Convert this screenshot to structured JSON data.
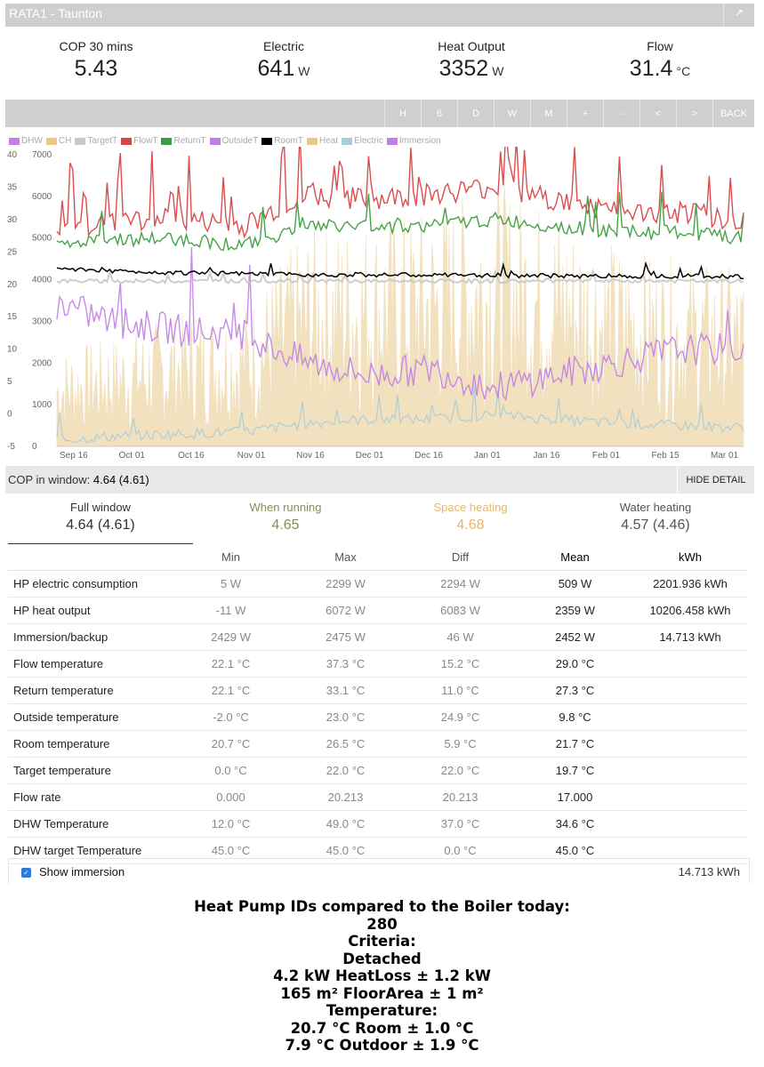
{
  "window": {
    "title": "RATA1 - Taunton",
    "external_icon": "external-link-icon"
  },
  "stats": [
    {
      "label": "COP 30 mins",
      "value": "5.43",
      "unit": ""
    },
    {
      "label": "Electric",
      "value": "641",
      "unit": "W"
    },
    {
      "label": "Heat Output",
      "value": "3352",
      "unit": "W"
    },
    {
      "label": "Flow",
      "value": "31.4",
      "unit": "°C"
    }
  ],
  "toolbar": {
    "buttons": [
      "H",
      "6",
      "D",
      "W",
      "M",
      "+",
      "-",
      "<",
      ">",
      "BACK"
    ]
  },
  "legend": [
    {
      "name": "DHW",
      "color": "#c27ee6"
    },
    {
      "name": "CH",
      "color": "#e8c98a"
    },
    {
      "name": "TargetT",
      "color": "#c8c8c8"
    },
    {
      "name": "FlowT",
      "color": "#d94545"
    },
    {
      "name": "ReturnT",
      "color": "#3c9e3c"
    },
    {
      "name": "OutsideT",
      "color": "#c27ee6"
    },
    {
      "name": "RoomT",
      "color": "#000000"
    },
    {
      "name": "Heat",
      "color": "#e8c98a"
    },
    {
      "name": "Electric",
      "color": "#a9ccd8"
    },
    {
      "name": "Immersion",
      "color": "#c27ee6"
    }
  ],
  "chart_data": {
    "type": "line",
    "x_ticks": [
      "Sep 16",
      "Oct 01",
      "Oct 16",
      "Nov 01",
      "Nov 16",
      "Dec 01",
      "Dec 16",
      "Jan 01",
      "Jan 16",
      "Feb 01",
      "Feb 15",
      "Mar 01"
    ],
    "y_left_ticks": [
      "40",
      "35",
      "30",
      "25",
      "20",
      "15",
      "10",
      "5",
      "0",
      "-5"
    ],
    "y_left_range": [
      -5,
      40
    ],
    "y_right_ticks": [
      "7000",
      "6000",
      "5000",
      "4000",
      "3000",
      "2000",
      "1000",
      "0"
    ],
    "y_right_range": [
      0,
      7000
    ],
    "series": [
      {
        "name": "FlowT",
        "axis": "left",
        "approx_level": [
          28,
          30,
          30,
          29,
          34,
          33,
          34,
          35,
          33,
          31,
          31,
          30
        ]
      },
      {
        "name": "ReturnT",
        "axis": "left",
        "approx_level": [
          26,
          27,
          27,
          26,
          29,
          29,
          29,
          30,
          29,
          28,
          28,
          27
        ]
      },
      {
        "name": "RoomT",
        "axis": "left",
        "approx_level": [
          22.5,
          22,
          21.8,
          21.6,
          21.5,
          21.5,
          21.4,
          21.4,
          21.3,
          21.3,
          21.3,
          21.2
        ]
      },
      {
        "name": "TargetT",
        "axis": "left",
        "approx_level": [
          20.5,
          20.5,
          20.5,
          20.5,
          20.5,
          20.5,
          20.5,
          20.5,
          20.5,
          20.5,
          20.5,
          20.5
        ]
      },
      {
        "name": "OutsideT",
        "axis": "left",
        "approx_level": [
          17,
          14,
          13,
          12,
          8,
          6,
          7,
          4,
          6,
          8,
          10,
          10
        ]
      },
      {
        "name": "Heat",
        "axis": "right",
        "approx_level": [
          1300,
          1500,
          1800,
          1900,
          2900,
          3100,
          3200,
          3600,
          3200,
          2700,
          2500,
          2400
        ]
      },
      {
        "name": "Electric",
        "axis": "right",
        "approx_level": [
          150,
          250,
          300,
          350,
          550,
          650,
          650,
          750,
          650,
          550,
          500,
          450
        ]
      }
    ]
  },
  "cop_bar": {
    "label": "COP in window:",
    "value": "4.64 (4.61)",
    "hide_label": "HIDE DETAIL"
  },
  "tabs": [
    {
      "label": "Full window",
      "value": "4.64 (4.61)",
      "color": "#333333"
    },
    {
      "label": "When running",
      "value": "4.65",
      "color": "#8a8a5a"
    },
    {
      "label": "Space heating",
      "value": "4.68",
      "color": "#e5b86a"
    },
    {
      "label": "Water heating",
      "value": "4.57 (4.46)",
      "color": "#555555"
    }
  ],
  "table": {
    "headers": [
      "",
      "Min",
      "Max",
      "Diff",
      "Mean",
      "kWh"
    ],
    "rows": [
      [
        "HP electric consumption",
        "5 W",
        "2299 W",
        "2294 W",
        "509 W",
        "2201.936 kWh"
      ],
      [
        "HP heat output",
        "-11 W",
        "6072 W",
        "6083 W",
        "2359 W",
        "10206.458 kWh"
      ],
      [
        "Immersion/backup",
        "2429 W",
        "2475 W",
        "46 W",
        "2452 W",
        "14.713 kWh"
      ],
      [
        "Flow temperature",
        "22.1 °C",
        "37.3 °C",
        "15.2 °C",
        "29.0 °C",
        ""
      ],
      [
        "Return temperature",
        "22.1 °C",
        "33.1 °C",
        "11.0 °C",
        "27.3 °C",
        ""
      ],
      [
        "Outside temperature",
        "-2.0 °C",
        "23.0 °C",
        "24.9 °C",
        "9.8 °C",
        ""
      ],
      [
        "Room temperature",
        "20.7 °C",
        "26.5 °C",
        "5.9 °C",
        "21.7 °C",
        ""
      ],
      [
        "Target temperature",
        "0.0 °C",
        "22.0 °C",
        "22.0 °C",
        "19.7 °C",
        ""
      ],
      [
        "Flow rate",
        "0.000",
        "20.213",
        "20.213",
        "17.000",
        ""
      ],
      [
        "DHW Temperature",
        "12.0 °C",
        "49.0 °C",
        "37.0 °C",
        "34.6 °C",
        ""
      ],
      [
        "DHW target Temperature",
        "45.0 °C",
        "45.0 °C",
        "0.0 °C",
        "45.0 °C",
        ""
      ]
    ]
  },
  "immersion": {
    "label": "Show immersion",
    "value": "14.713 kWh",
    "checked": true
  },
  "summary": {
    "heading": "Heat Pump IDs compared to the Boiler today:",
    "count": "280",
    "criteria_label": "Criteria:",
    "type": "Detached",
    "heatloss": "4.2 kW HeatLoss ± 1.2 kW",
    "floorarea": "165 m² FloorArea ± 1 m²",
    "temperature_label": "Temperature:",
    "room": "20.7 °C Room ± 1.0 °C",
    "outdoor": "7.9 °C Outdoor ± 1.9 °C"
  }
}
